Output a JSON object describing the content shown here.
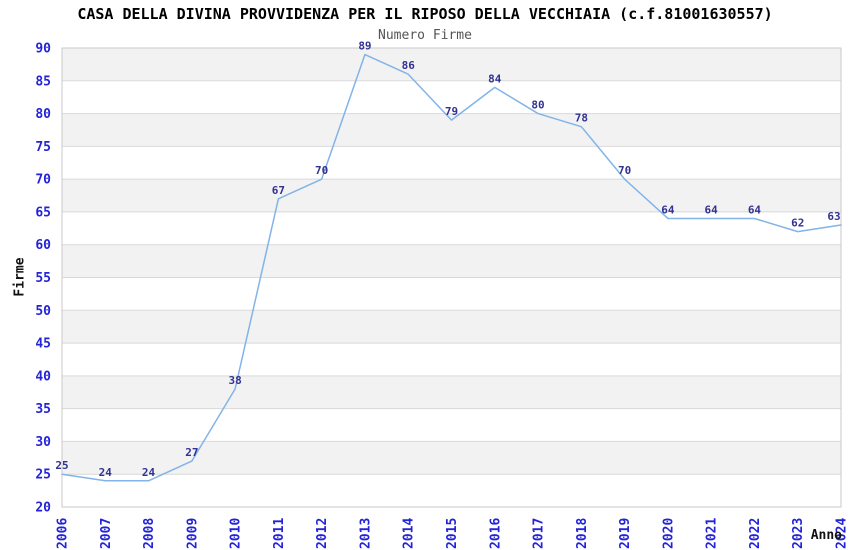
{
  "chart_data": {
    "type": "line",
    "title": "CASA DELLA DIVINA PROVVIDENZA PER IL RIPOSO DELLA VECCHIAIA (c.f.81001630557)",
    "subtitle": "Numero Firme",
    "xlabel": "Anno",
    "ylabel": "Firme",
    "categories": [
      "2006",
      "2007",
      "2008",
      "2009",
      "2010",
      "2011",
      "2012",
      "2013",
      "2014",
      "2015",
      "2016",
      "2017",
      "2018",
      "2019",
      "2020",
      "2021",
      "2022",
      "2023",
      "2024"
    ],
    "values": [
      25,
      24,
      24,
      27,
      38,
      67,
      70,
      89,
      86,
      79,
      84,
      80,
      78,
      70,
      64,
      64,
      64,
      62,
      63
    ],
    "ylim": [
      20,
      90
    ],
    "ytick_step": 5,
    "grid": "horizontal-only",
    "legend_position": "none",
    "data_labels_visible": true,
    "colors": {
      "line": "#82b4e8",
      "band_fill": "#f2f2f2",
      "gridline": "#d9d9d9",
      "plot_border": "#c9c9c9",
      "axis_tick_label": "#2323d9",
      "data_label": "#323293",
      "title_text": "#000000",
      "subtitle_text": "#555555",
      "background": "#ffffff"
    }
  }
}
